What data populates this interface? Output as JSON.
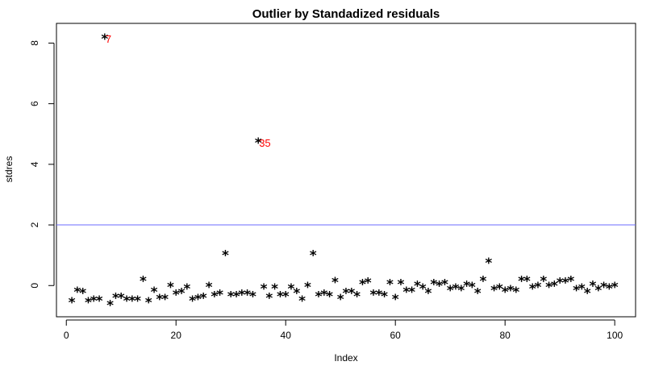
{
  "chart_data": {
    "type": "scatter",
    "title": "Outlier by Standadized residuals",
    "xlabel": "Index",
    "ylabel": "stdres",
    "xlim": [
      -1.8,
      103.8
    ],
    "ylim": [
      -1.03,
      8.65
    ],
    "x_ticks": [
      0,
      20,
      40,
      60,
      80,
      100
    ],
    "y_ticks": [
      0,
      2,
      4,
      6,
      8
    ],
    "grid": false,
    "marker": "*",
    "marker_color": "#000000",
    "threshold_line": {
      "y": 2,
      "color": "#6b6bff"
    },
    "outlier_label_color": "#ff0000",
    "x": [
      1,
      2,
      3,
      4,
      5,
      6,
      7,
      8,
      9,
      10,
      11,
      12,
      13,
      14,
      15,
      16,
      17,
      18,
      19,
      20,
      21,
      22,
      23,
      24,
      25,
      26,
      27,
      28,
      29,
      30,
      31,
      32,
      33,
      34,
      35,
      36,
      37,
      38,
      39,
      40,
      41,
      42,
      43,
      44,
      45,
      46,
      47,
      48,
      49,
      50,
      51,
      52,
      53,
      54,
      55,
      56,
      57,
      58,
      59,
      60,
      61,
      62,
      63,
      64,
      65,
      66,
      67,
      68,
      69,
      70,
      71,
      72,
      73,
      74,
      75,
      76,
      77,
      78,
      79,
      80,
      81,
      82,
      83,
      84,
      85,
      86,
      87,
      88,
      89,
      90,
      91,
      92,
      93,
      94,
      95,
      96,
      97,
      98,
      99,
      100
    ],
    "y": [
      -0.55,
      -0.2,
      -0.25,
      -0.55,
      -0.5,
      -0.5,
      8.15,
      -0.65,
      -0.4,
      -0.4,
      -0.5,
      -0.5,
      -0.5,
      0.15,
      -0.55,
      -0.2,
      -0.45,
      -0.45,
      -0.05,
      -0.3,
      -0.25,
      -0.1,
      -0.5,
      -0.45,
      -0.4,
      -0.05,
      -0.35,
      -0.3,
      1.0,
      -0.35,
      -0.35,
      -0.3,
      -0.3,
      -0.35,
      4.72,
      -0.1,
      -0.4,
      -0.1,
      -0.35,
      -0.35,
      -0.1,
      -0.25,
      -0.5,
      -0.05,
      1.0,
      -0.35,
      -0.3,
      -0.35,
      0.12,
      -0.45,
      -0.25,
      -0.25,
      -0.35,
      0.05,
      0.1,
      -0.3,
      -0.3,
      -0.35,
      0.05,
      -0.45,
      0.05,
      -0.2,
      -0.2,
      0.0,
      -0.1,
      -0.25,
      0.05,
      0.0,
      0.05,
      -0.15,
      -0.1,
      -0.15,
      0.0,
      -0.05,
      -0.25,
      0.15,
      0.75,
      -0.15,
      -0.1,
      -0.2,
      -0.15,
      -0.2,
      0.15,
      0.15,
      -0.1,
      -0.05,
      0.15,
      -0.05,
      0.0,
      0.1,
      0.1,
      0.15,
      -0.15,
      -0.1,
      -0.25,
      0.0,
      -0.15,
      -0.05,
      -0.1,
      -0.05
    ],
    "outliers": [
      {
        "index": 7,
        "label": "7"
      },
      {
        "index": 35,
        "label": "35"
      }
    ]
  }
}
